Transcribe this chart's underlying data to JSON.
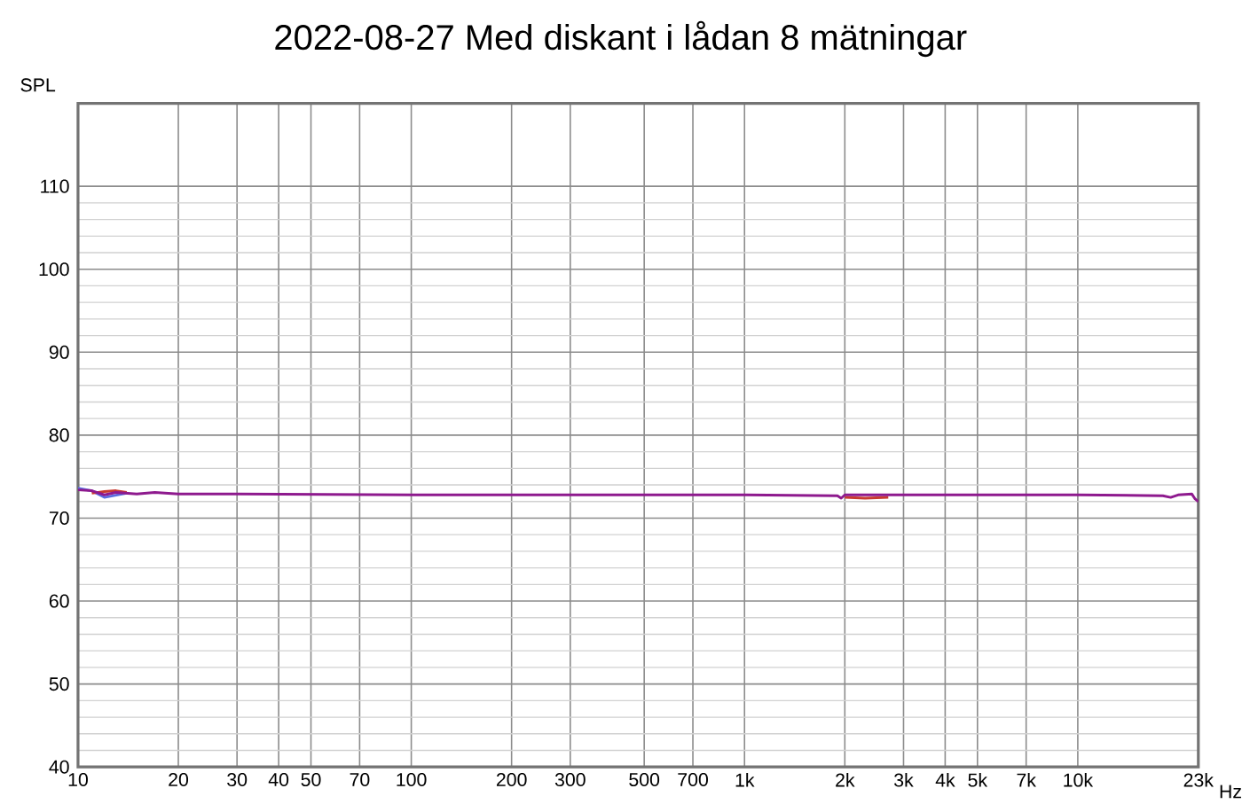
{
  "chart_data": {
    "type": "line",
    "title": "2022-08-27 Med diskant i lådan 8 mätningar",
    "ylabel": "SPL",
    "log": "x",
    "grid": true,
    "xlim": [
      10,
      23000
    ],
    "ylim": [
      40,
      120
    ],
    "xticks": [
      10,
      20,
      30,
      40,
      50,
      70,
      100,
      200,
      300,
      500,
      700,
      {
        "value": 1000,
        "label": "1k"
      },
      {
        "value": 2000,
        "label": "2k"
      },
      {
        "value": 3000,
        "label": "3k"
      },
      {
        "value": 4000,
        "label": "4k"
      },
      {
        "value": 5000,
        "label": "5k"
      },
      {
        "value": 7000,
        "label": "7k"
      },
      {
        "value": 10000,
        "label": "10k"
      },
      {
        "value": 23000,
        "label": "23k"
      }
    ],
    "xlabel": "Hz",
    "yticks": [
      40,
      50,
      60,
      70,
      80,
      90,
      100,
      110
    ],
    "series": [
      {
        "color": "#5a6ee0",
        "x": [
          10,
          11,
          12,
          14
        ],
        "values": [
          73.6,
          73.3,
          72.5,
          73.0
        ]
      },
      {
        "color": "#c83a30",
        "x": [
          11,
          12,
          13,
          14,
          1000,
          2000,
          2300,
          2700
        ],
        "values": [
          73.0,
          73.2,
          73.3,
          73.1,
          null,
          72.5,
          72.4,
          72.5
        ]
      },
      {
        "color": "#8e1a8e",
        "x": [
          10,
          11,
          12,
          13,
          15,
          17,
          20,
          30,
          100,
          1000,
          1900,
          1950,
          2000,
          5000,
          10000,
          18000,
          19000,
          20000,
          22000,
          22500,
          23000
        ],
        "values": [
          73.4,
          73.3,
          72.8,
          73.1,
          72.9,
          73.1,
          72.9,
          72.9,
          72.8,
          72.8,
          72.7,
          72.4,
          72.8,
          72.8,
          72.8,
          72.7,
          72.5,
          72.8,
          72.9,
          72.3,
          72.0
        ]
      }
    ]
  }
}
